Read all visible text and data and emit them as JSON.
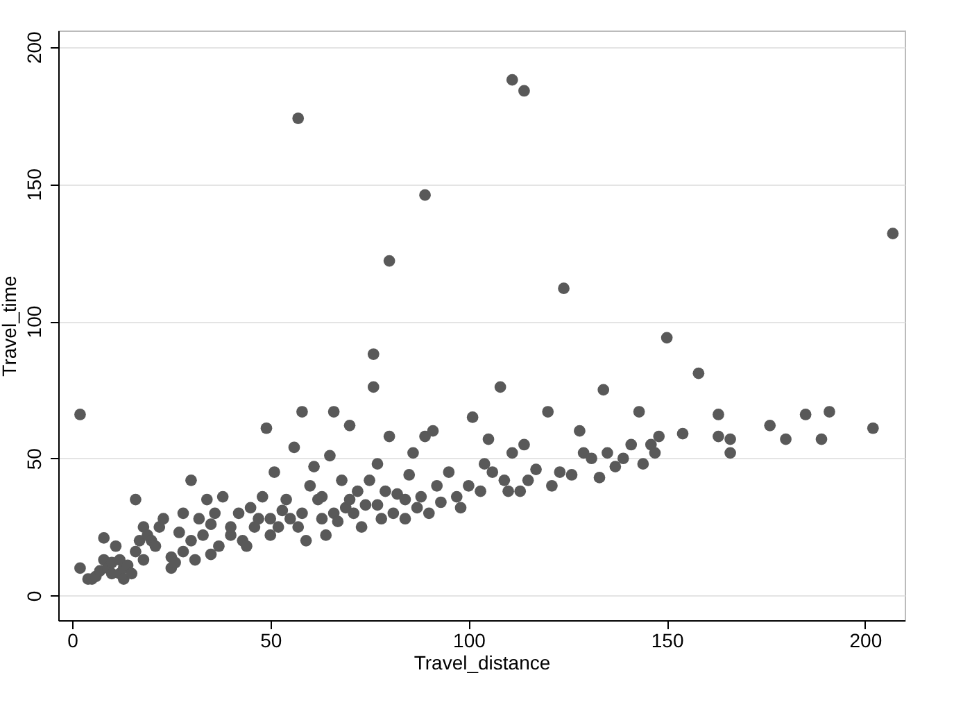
{
  "chart_data": {
    "type": "scatter",
    "xlabel": "Travel_distance",
    "ylabel": "Travel_time",
    "xlim": [
      -3.5,
      210
    ],
    "ylim": [
      -9,
      206
    ],
    "xticks": [
      0,
      50,
      100,
      150,
      200
    ],
    "yticks": [
      0,
      50,
      100,
      150,
      200
    ],
    "grid": "y",
    "marker": "circle",
    "series": [
      {
        "color": "#595959",
        "x": [
          2,
          4,
          5,
          6,
          7,
          8,
          8,
          9,
          10,
          10,
          11,
          12,
          12,
          13,
          13,
          14,
          15,
          16,
          16,
          17,
          18,
          18,
          19,
          20,
          21,
          22,
          23,
          25,
          25,
          26,
          27,
          28,
          28,
          30,
          30,
          31,
          32,
          33,
          34,
          35,
          35,
          36,
          37,
          38,
          40,
          40,
          42,
          43,
          44,
          45,
          46,
          47,
          48,
          49,
          50,
          50,
          51,
          52,
          53,
          54,
          55,
          56,
          57,
          58,
          58,
          59,
          60,
          61,
          62,
          63,
          63,
          64,
          65,
          66,
          66,
          67,
          68,
          69,
          70,
          70,
          71,
          72,
          73,
          74,
          75,
          76,
          76,
          77,
          77,
          78,
          79,
          80,
          80,
          81,
          82,
          84,
          84,
          85,
          86,
          87,
          88,
          89,
          89,
          90,
          91,
          92,
          93,
          95,
          97,
          98,
          100,
          101,
          103,
          104,
          105,
          106,
          108,
          109,
          110,
          111,
          111,
          113,
          114,
          114,
          115,
          117,
          120,
          121,
          123,
          124,
          126,
          128,
          129,
          131,
          133,
          134,
          135,
          137,
          139,
          141,
          143,
          144,
          146,
          147,
          148,
          150,
          154,
          158,
          163,
          163,
          166,
          166,
          176,
          180,
          185,
          189,
          191,
          202,
          207,
          2,
          57
        ],
        "values": [
          10,
          6,
          6,
          7,
          9,
          13,
          21,
          10,
          8,
          12,
          18,
          8,
          13,
          10,
          6,
          11,
          8,
          35,
          16,
          20,
          25,
          13,
          22,
          20,
          18,
          25,
          28,
          10,
          14,
          12,
          23,
          16,
          30,
          42,
          20,
          13,
          28,
          22,
          35,
          15,
          26,
          30,
          18,
          36,
          22,
          25,
          30,
          20,
          18,
          32,
          25,
          28,
          36,
          61,
          22,
          28,
          45,
          25,
          31,
          35,
          28,
          54,
          25,
          67,
          30,
          20,
          40,
          47,
          35,
          28,
          36,
          22,
          51,
          67,
          30,
          27,
          42,
          32,
          62,
          35,
          30,
          38,
          25,
          33,
          42,
          88,
          76,
          48,
          33,
          28,
          38,
          122,
          58,
          30,
          37,
          28,
          35,
          44,
          52,
          32,
          36,
          146,
          58,
          30,
          60,
          40,
          34,
          45,
          36,
          32,
          40,
          65,
          38,
          48,
          57,
          45,
          76,
          42,
          38,
          188,
          52,
          38,
          184,
          55,
          42,
          46,
          67,
          40,
          45,
          112,
          44,
          60,
          52,
          50,
          43,
          75,
          52,
          47,
          50,
          55,
          67,
          48,
          55,
          52,
          58,
          94,
          59,
          81,
          66,
          58,
          52,
          57,
          62,
          57,
          66,
          57,
          67,
          61,
          132,
          66,
          174
        ]
      }
    ]
  }
}
